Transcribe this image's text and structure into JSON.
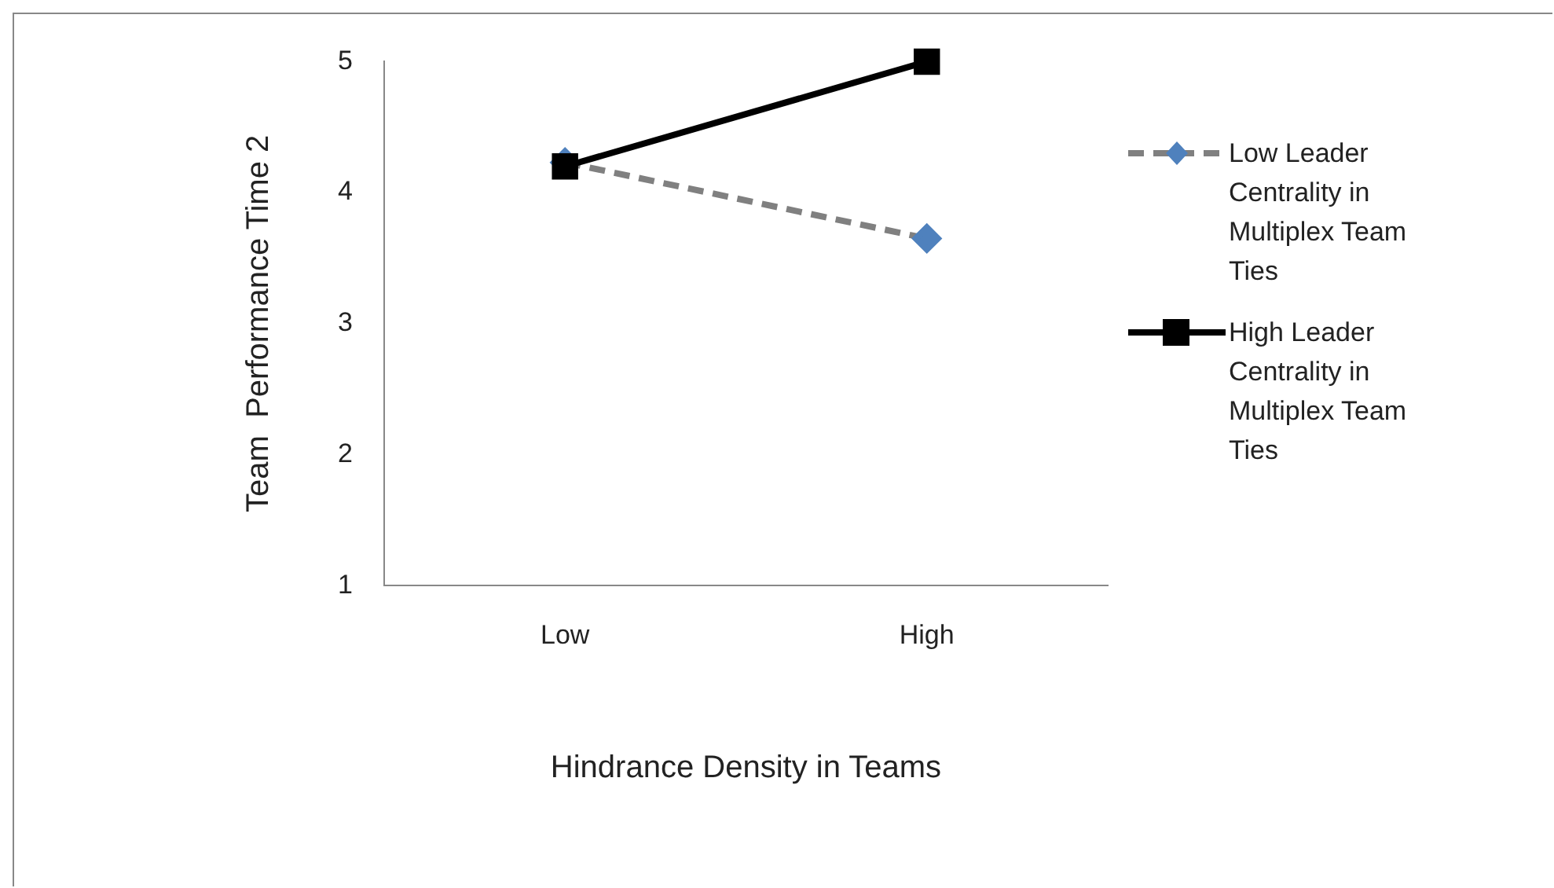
{
  "chart_data": {
    "type": "line",
    "xlabel": "Hindrance Density in Teams",
    "ylabel": "Team  Performance Time 2",
    "categories": [
      "Low",
      "High"
    ],
    "ylim": [
      1,
      5
    ],
    "yticks": [
      1,
      2,
      3,
      4,
      5
    ],
    "grid": false,
    "legend": "right",
    "series": [
      {
        "name": "Low Leader Centrality in Multiplex Team Ties",
        "color": "#808080",
        "marker": "diamond",
        "colors": [
          "#4f81bd",
          "#4f81bd"
        ],
        "line_style": "dashed",
        "values": [
          4.23,
          3.65
        ]
      },
      {
        "name": "High Leader Centrality in Multiplex Team Ties",
        "color": "#000000",
        "marker": "square",
        "line_style": "solid",
        "values": [
          4.2,
          5.0
        ]
      }
    ]
  }
}
